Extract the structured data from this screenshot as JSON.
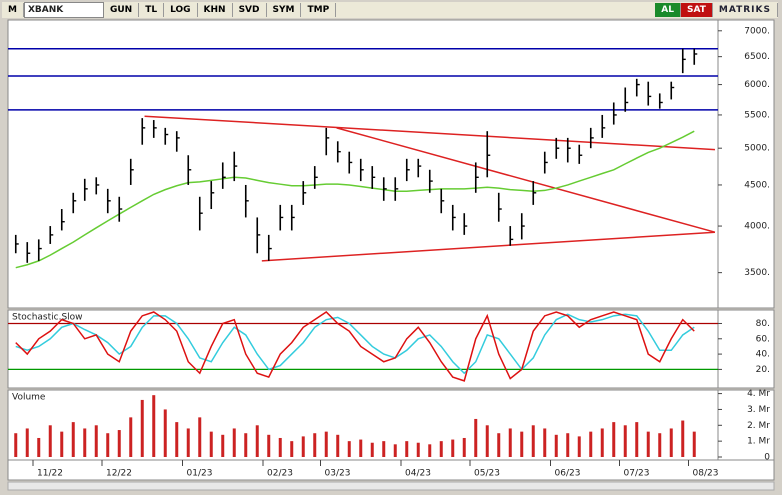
{
  "toolbar": {
    "logo": "M",
    "symbol": "XBANK",
    "buttons": [
      "GUN",
      "TL",
      "LOG",
      "KHN",
      "SVD",
      "SYM",
      "TMP"
    ],
    "buy": "AL",
    "sell": "SAT",
    "brand": "MATRIKS"
  },
  "chart_data": [
    {
      "type": "ohlc",
      "log": true,
      "categories": [
        null,
        null,
        "11/22",
        null,
        null,
        null,
        null,
        null,
        "12/22",
        null,
        null,
        null,
        null,
        null,
        null,
        "01/23",
        null,
        null,
        null,
        null,
        null,
        null,
        "02/23",
        null,
        null,
        null,
        null,
        "03/23",
        null,
        null,
        null,
        null,
        null,
        null,
        "04/23",
        null,
        null,
        null,
        null,
        null,
        "05/23",
        null,
        null,
        null,
        null,
        null,
        null,
        "06/23",
        null,
        null,
        null,
        null,
        null,
        "07/23",
        null,
        null,
        null,
        null,
        null,
        "08/23"
      ],
      "high": [
        3900,
        3820,
        3850,
        4000,
        4200,
        4400,
        4580,
        4600,
        4450,
        4350,
        4850,
        5450,
        5420,
        5300,
        5250,
        4900,
        4350,
        4550,
        4800,
        4950,
        4500,
        4100,
        3900,
        4250,
        4250,
        4550,
        4750,
        5300,
        5100,
        4950,
        4850,
        4750,
        4600,
        4600,
        4850,
        4850,
        4700,
        4450,
        4250,
        4150,
        4800,
        5250,
        4400,
        4000,
        4150,
        4550,
        4950,
        5150,
        5150,
        5050,
        5300,
        5500,
        5700,
        5950,
        6100,
        6050,
        5850,
        6050,
        6650,
        6650
      ],
      "low": [
        3700,
        3600,
        3620,
        3800,
        3950,
        4150,
        4300,
        4380,
        4150,
        4050,
        4500,
        5050,
        5150,
        5050,
        4950,
        4500,
        3950,
        4200,
        4450,
        4550,
        4100,
        3700,
        3620,
        3950,
        3950,
        4250,
        4450,
        4900,
        4800,
        4650,
        4550,
        4450,
        4300,
        4300,
        4550,
        4600,
        4400,
        4150,
        3950,
        3900,
        4400,
        4600,
        4050,
        3780,
        3850,
        4250,
        4650,
        4850,
        4800,
        4780,
        5000,
        5150,
        5350,
        5550,
        5800,
        5650,
        5600,
        5750,
        6200,
        6350
      ],
      "close": [
        3800,
        3700,
        3750,
        3900,
        4050,
        4300,
        4450,
        4500,
        4300,
        4200,
        4700,
        5300,
        5300,
        5200,
        5150,
        4700,
        4150,
        4400,
        4600,
        4750,
        4300,
        3900,
        3750,
        4100,
        4100,
        4400,
        4600,
        5150,
        4950,
        4800,
        4700,
        4600,
        4450,
        4450,
        4700,
        4750,
        4550,
        4300,
        4100,
        4000,
        4600,
        4900,
        4200,
        3850,
        4000,
        4400,
        4800,
        5000,
        5000,
        4900,
        5150,
        5300,
        5500,
        5700,
        6000,
        5800,
        5700,
        5950,
        6450,
        6550
      ],
      "moving_average": {
        "color": "#66cc33",
        "values": [
          3550,
          3580,
          3620,
          3680,
          3750,
          3820,
          3900,
          3980,
          4060,
          4140,
          4220,
          4300,
          4380,
          4440,
          4490,
          4530,
          4540,
          4560,
          4580,
          4600,
          4590,
          4560,
          4530,
          4510,
          4490,
          4490,
          4500,
          4510,
          4510,
          4500,
          4480,
          4460,
          4440,
          4420,
          4420,
          4430,
          4440,
          4450,
          4450,
          4450,
          4460,
          4470,
          4460,
          4440,
          4430,
          4420,
          4430,
          4460,
          4500,
          4550,
          4600,
          4650,
          4700,
          4780,
          4860,
          4940,
          5000,
          5080,
          5160,
          5250
        ]
      },
      "levels": {
        "color": "#0000aa",
        "values": [
          6650,
          6150,
          5580
        ]
      },
      "trendlines": [
        {
          "color": "#dd2222",
          "x": [
            11.2,
            60.8
          ],
          "y": [
            5480,
            4980
          ]
        },
        {
          "color": "#dd2222",
          "x": [
            21.4,
            60.8
          ],
          "y": [
            3620,
            3930
          ]
        },
        {
          "color": "#dd2222",
          "x": [
            27.9,
            60.8
          ],
          "y": [
            5300,
            3930
          ]
        }
      ],
      "ylim": [
        3190,
        7220
      ],
      "yticks": [
        {
          "value": 3500,
          "label": "3500."
        },
        {
          "value": 4000,
          "label": "4000."
        },
        {
          "value": 4500,
          "label": "4500."
        },
        {
          "value": 5000,
          "label": "5000."
        },
        {
          "value": 5500,
          "label": "5500."
        },
        {
          "value": 6000,
          "label": "6000."
        },
        {
          "value": 6500,
          "label": "6500."
        },
        {
          "value": 7000,
          "label": "7000."
        }
      ]
    },
    {
      "type": "line",
      "title": "Stochastic.Slow",
      "series": [
        {
          "color": "#dd1111",
          "values": [
            55,
            40,
            60,
            70,
            85,
            80,
            60,
            65,
            40,
            30,
            70,
            90,
            95,
            85,
            70,
            30,
            15,
            50,
            80,
            85,
            40,
            15,
            10,
            40,
            55,
            75,
            85,
            95,
            80,
            70,
            50,
            40,
            30,
            35,
            60,
            75,
            55,
            30,
            10,
            5,
            60,
            90,
            40,
            8,
            20,
            70,
            90,
            95,
            90,
            75,
            85,
            90,
            95,
            90,
            85,
            40,
            30,
            60,
            85,
            70
          ]
        },
        {
          "color": "#33ccdd",
          "values": [
            50,
            45,
            50,
            60,
            75,
            80,
            72,
            65,
            55,
            40,
            50,
            75,
            90,
            90,
            80,
            60,
            35,
            30,
            55,
            75,
            65,
            40,
            20,
            25,
            40,
            55,
            75,
            85,
            88,
            80,
            65,
            50,
            40,
            35,
            45,
            60,
            65,
            50,
            30,
            15,
            30,
            65,
            60,
            40,
            20,
            35,
            65,
            85,
            92,
            85,
            82,
            85,
            90,
            92,
            90,
            70,
            45,
            45,
            65,
            75
          ]
        }
      ],
      "bands": [
        {
          "value": 80,
          "color": "#aa0000"
        },
        {
          "value": 20,
          "color": "#009900"
        }
      ],
      "ylim": [
        -3,
        95
      ],
      "yticks": [
        {
          "value": 20,
          "label": "20."
        },
        {
          "value": 40,
          "label": "40."
        },
        {
          "value": 60,
          "label": "60."
        },
        {
          "value": 80,
          "label": "80."
        }
      ]
    },
    {
      "type": "bar",
      "title": "Volume",
      "color": "#cc2222",
      "values": [
        1.5,
        1.8,
        1.2,
        2.0,
        1.6,
        2.2,
        1.8,
        2.0,
        1.5,
        1.7,
        2.5,
        3.6,
        3.9,
        3.0,
        2.2,
        1.8,
        2.5,
        1.6,
        1.4,
        1.8,
        1.5,
        2.0,
        1.4,
        1.2,
        1.0,
        1.3,
        1.5,
        1.6,
        1.4,
        1.0,
        1.1,
        0.9,
        1.0,
        0.8,
        1.0,
        0.9,
        0.8,
        1.0,
        1.1,
        1.2,
        2.4,
        2.0,
        1.5,
        1.8,
        1.6,
        2.0,
        1.8,
        1.4,
        1.5,
        1.3,
        1.6,
        1.8,
        2.2,
        2.0,
        2.2,
        1.6,
        1.5,
        1.8,
        2.3,
        1.6
      ],
      "ylim": [
        0,
        4.1
      ],
      "yticks": [
        0,
        {
          "value": 1,
          "label": "1. Mr"
        },
        {
          "value": 2,
          "label": "2. Mr"
        },
        {
          "value": 3,
          "label": "3. Mr"
        },
        {
          "value": 4,
          "label": "4. Mr"
        }
      ]
    }
  ]
}
